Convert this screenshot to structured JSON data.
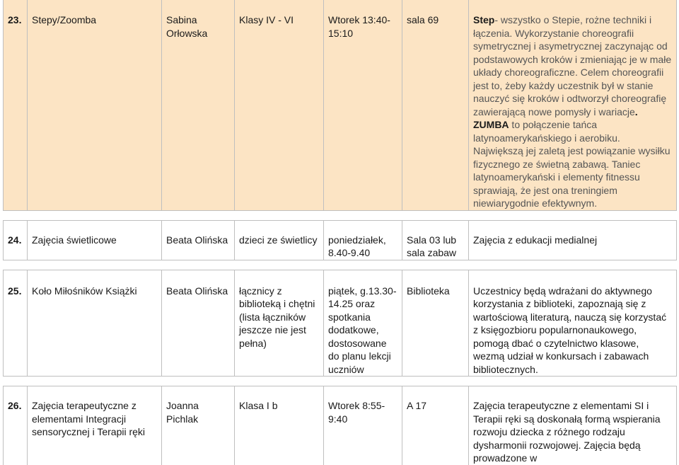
{
  "rows": [
    {
      "num": "23.",
      "name": "Stepy/Zoomba",
      "teacher": "Sabina Orłowska",
      "group": "Klasy IV - VI",
      "time": "Wtorek 13:40-15:10",
      "room": "sala 69",
      "desc_bold1": "Step",
      "desc_text1": "- wszystko o Stepie, rożne techniki i łączenia. Wykorzystanie choreografii symetrycznej i asymetrycznej zaczynając od podstawowych kroków i zmieniając je w małe układy choreograficzne. Celem choreografii jest to, żeby każdy uczestnik był w stanie nauczyć się kroków i odtworzył choreografię zawierającą nowe pomysły i wariacje",
      "desc_bold_dot": ".",
      "desc_bold2": "ZUMBA",
      "desc_text2": " to połączenie tańca latynoamerykańskiego i aerobiku. Największą jej zaletą jest powiązanie wysiłku fizycznego ze świetną zabawą. Taniec latynoamerykański i elementy fitnessu sprawiają, że jest ona treningiem niewiarygodnie efektywnym."
    },
    {
      "num": "24.",
      "name": "Zajęcia świetlicowe",
      "teacher": "Beata Olińska",
      "group": "dzieci ze świetlicy",
      "time": "poniedziałek, 8.40-9.40",
      "room": "Sala 03 lub sala zabaw",
      "desc": "Zajęcia z edukacji medialnej"
    },
    {
      "num": "25.",
      "name": "Koło Miłośników Książki",
      "teacher": "Beata Olińska",
      "group": "łącznicy z biblioteką i chętni (lista łączników jeszcze nie jest pełna)",
      "time": "piątek, g.13.30-14.25 oraz spotkania dodatkowe, dostosowane do planu lekcji uczniów",
      "room": "Biblioteka",
      "desc": "Uczestnicy będą wdrażani do aktywnego korzystania z biblioteki, zapoznają się z wartościową literaturą, nauczą się korzystać z księgozbioru popularnonaukowego, pomogą dbać o czytelnictwo klasowe, wezmą udział w konkursach i zabawach bibliotecznych."
    },
    {
      "num": "26.",
      "name": "Zajęcia terapeutyczne z elementami Integracji sensorycznej i Terapii ręki",
      "teacher": "Joanna Pichlak",
      "group": "Klasa I b",
      "time": "Wtorek 8:55- 9:40",
      "room": "A 17",
      "desc": "Zajęcia terapeutyczne z elementami SI i Terapii ręki są doskonałą formą wspierania rozwoju dziecka z różnego rodzaju dysharmonii rozwojowej. Zajęcia będą prowadzone w"
    }
  ]
}
